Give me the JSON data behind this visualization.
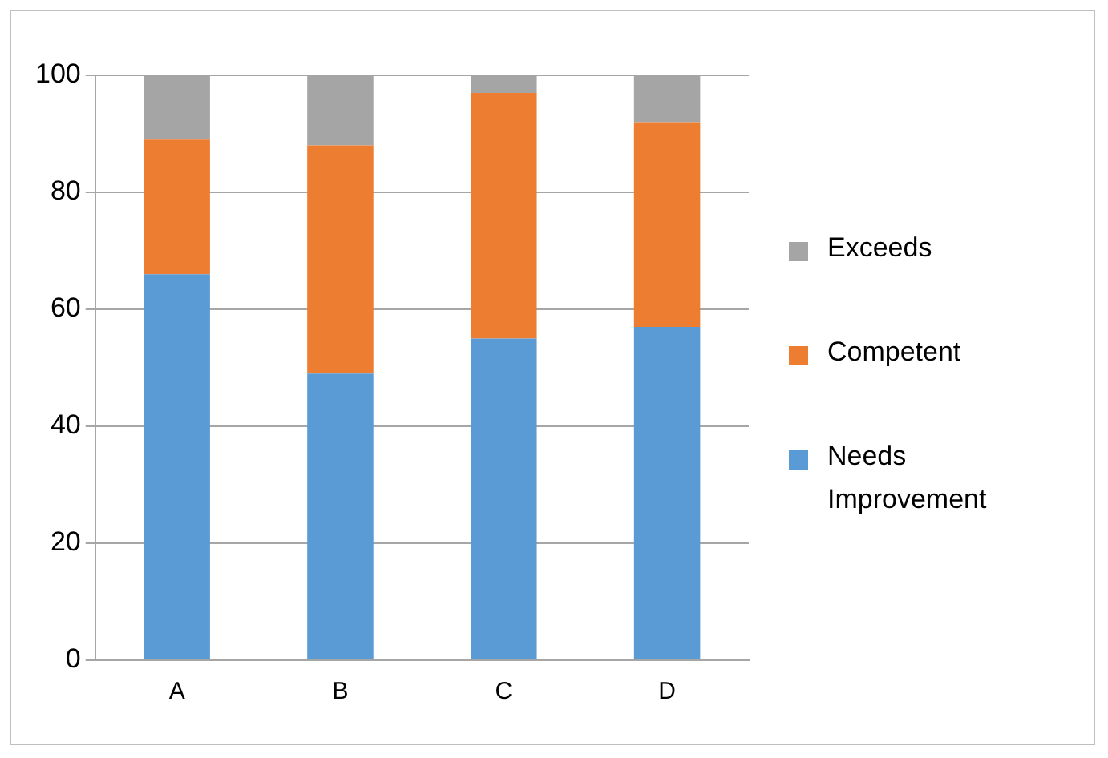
{
  "chart_data": {
    "type": "bar",
    "stacked": true,
    "categories": [
      "A",
      "B",
      "C",
      "D"
    ],
    "series": [
      {
        "name": "Needs Improvement",
        "color": "#5b9bd5",
        "values": [
          66,
          49,
          55,
          57
        ]
      },
      {
        "name": "Competent",
        "color": "#ed7d31",
        "values": [
          23,
          39,
          42,
          35
        ]
      },
      {
        "name": "Exceeds",
        "color": "#a5a5a5",
        "values": [
          11,
          12,
          3,
          8
        ]
      }
    ],
    "ylim": [
      0,
      100
    ],
    "yticks": [
      0,
      20,
      40,
      60,
      80,
      100
    ],
    "grid": "y",
    "legend": "right"
  }
}
